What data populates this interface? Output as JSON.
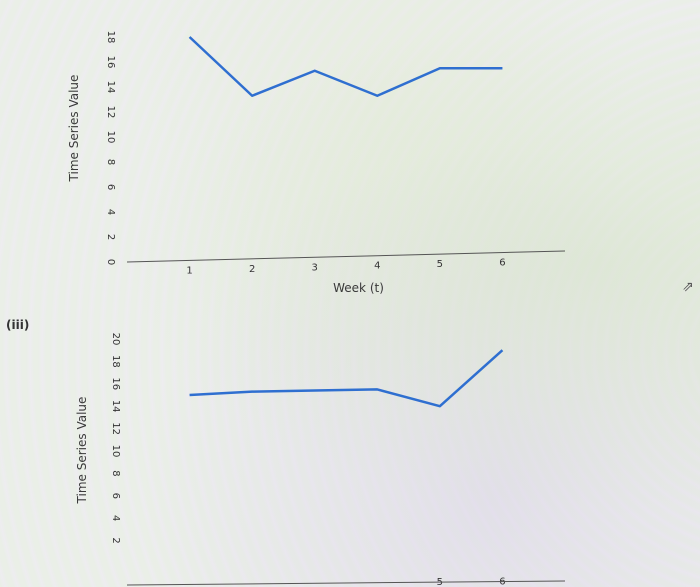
{
  "question": {
    "part_label": "(iii)"
  },
  "chart_data": [
    {
      "type": "line",
      "xlabel": "Week (t)",
      "ylabel": "Time Series Value",
      "x": [
        1,
        2,
        3,
        4,
        5,
        6
      ],
      "series": [
        {
          "values": [
            18,
            13.3,
            15.3,
            13.3,
            15.5,
            15.5
          ]
        }
      ],
      "xticks": [
        "1",
        "2",
        "3",
        "4",
        "5",
        "6"
      ],
      "yticks": [
        "0",
        "2",
        "4",
        "6",
        "8",
        "10",
        "12",
        "14",
        "16",
        "18"
      ],
      "xlim": [
        0,
        7
      ],
      "ylim": [
        0,
        18
      ],
      "grid": false,
      "color": "#2f6fd0"
    },
    {
      "type": "line",
      "xlabel": "",
      "ylabel": "Time Series Value",
      "x": [
        1,
        2,
        3,
        4,
        5,
        6
      ],
      "series": [
        {
          "values": [
            15,
            15.3,
            15.4,
            15.5,
            14,
            19
          ]
        }
      ],
      "xticks": [
        "5",
        "6"
      ],
      "yticks": [
        "2",
        "4",
        "6",
        "8",
        "10",
        "12",
        "14",
        "16",
        "18",
        "20"
      ],
      "xlim": [
        0,
        7
      ],
      "ylim": [
        0,
        20
      ],
      "grid": false,
      "color": "#2f6fd0"
    }
  ]
}
